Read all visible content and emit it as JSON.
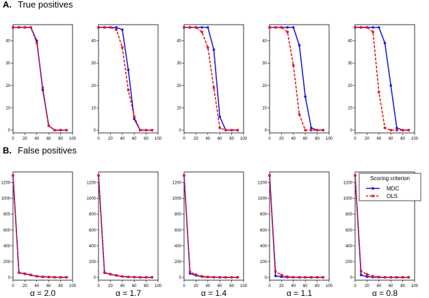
{
  "colors": {
    "mdc": "#1a1adb",
    "ols": "#e8141b",
    "frame": "#000000"
  },
  "sections": [
    {
      "letter": "A.",
      "title": "True positives"
    },
    {
      "letter": "B.",
      "title": "False positives"
    }
  ],
  "alpha_symbol": "α",
  "alpha_labels": [
    "α = 2.0",
    "α = 1.7",
    "α = 1.4",
    "α = 1.1",
    "α = 0.8"
  ],
  "legend": {
    "title": "Scoring criterion",
    "mdc": "MDC",
    "ols": "OLS"
  },
  "chart_data": [
    {
      "type": "line",
      "row": "true_positives",
      "alpha": 2.0,
      "x": [
        0,
        10,
        20,
        30,
        40,
        50,
        60,
        70,
        80,
        90
      ],
      "xlim": [
        0,
        100
      ],
      "xticks": [
        0,
        20,
        40,
        60,
        80,
        100
      ],
      "ylim": [
        0,
        46
      ],
      "yticks": [
        0,
        10,
        20,
        30,
        40
      ],
      "series": [
        {
          "name": "MDC",
          "values": [
            46,
            46,
            46,
            46,
            40,
            18,
            2,
            0,
            0,
            0
          ]
        },
        {
          "name": "OLS",
          "values": [
            46,
            46,
            46,
            46,
            39,
            19,
            2,
            0,
            0,
            0
          ]
        }
      ]
    },
    {
      "type": "line",
      "row": "true_positives",
      "alpha": 1.7,
      "x": [
        0,
        10,
        20,
        30,
        40,
        50,
        60,
        70,
        80,
        90
      ],
      "xlim": [
        0,
        100
      ],
      "xticks": [
        0,
        20,
        40,
        60,
        80,
        100
      ],
      "ylim": [
        0,
        46
      ],
      "yticks": [
        0,
        10,
        20,
        30,
        40
      ],
      "series": [
        {
          "name": "MDC",
          "values": [
            46,
            46,
            46,
            46,
            45,
            27,
            5,
            0,
            0,
            0
          ]
        },
        {
          "name": "OLS",
          "values": [
            46,
            46,
            46,
            45,
            37,
            18,
            6,
            0,
            0,
            0
          ]
        }
      ]
    },
    {
      "type": "line",
      "row": "true_positives",
      "alpha": 1.4,
      "x": [
        0,
        10,
        20,
        30,
        40,
        50,
        60,
        70,
        80,
        90
      ],
      "xlim": [
        0,
        100
      ],
      "xticks": [
        0,
        20,
        40,
        60,
        80,
        100
      ],
      "ylim": [
        0,
        46
      ],
      "yticks": [
        0,
        10,
        20,
        30,
        40
      ],
      "series": [
        {
          "name": "MDC",
          "values": [
            46,
            46,
            46,
            46,
            46,
            36,
            6,
            0,
            0,
            0
          ]
        },
        {
          "name": "OLS",
          "values": [
            46,
            46,
            46,
            44,
            37,
            19,
            1,
            0,
            0,
            0
          ]
        }
      ]
    },
    {
      "type": "line",
      "row": "true_positives",
      "alpha": 1.1,
      "x": [
        0,
        10,
        20,
        30,
        40,
        50,
        60,
        70,
        80,
        90
      ],
      "xlim": [
        0,
        100
      ],
      "xticks": [
        0,
        20,
        40,
        60,
        80,
        100
      ],
      "ylim": [
        0,
        46
      ],
      "yticks": [
        0,
        10,
        20,
        30,
        40
      ],
      "series": [
        {
          "name": "MDC",
          "values": [
            46,
            46,
            46,
            46,
            46,
            38,
            15,
            1,
            0,
            0
          ]
        },
        {
          "name": "OLS",
          "values": [
            46,
            46,
            46,
            44,
            29,
            7,
            0,
            0,
            0,
            0
          ]
        }
      ]
    },
    {
      "type": "line",
      "row": "true_positives",
      "alpha": 0.8,
      "x": [
        0,
        10,
        20,
        30,
        40,
        50,
        60,
        70,
        80,
        90
      ],
      "xlim": [
        0,
        100
      ],
      "xticks": [
        0,
        20,
        40,
        60,
        80,
        100
      ],
      "ylim": [
        0,
        46
      ],
      "yticks": [
        0,
        10,
        20,
        30,
        40
      ],
      "series": [
        {
          "name": "MDC",
          "values": [
            46,
            46,
            46,
            46,
            46,
            39,
            20,
            1,
            0,
            0
          ]
        },
        {
          "name": "OLS",
          "values": [
            46,
            46,
            46,
            44,
            17,
            1,
            0,
            0,
            0,
            0
          ]
        }
      ]
    },
    {
      "type": "line",
      "row": "false_positives",
      "alpha": 2.0,
      "x": [
        0,
        10,
        20,
        30,
        40,
        50,
        60,
        70,
        80,
        90
      ],
      "xlim": [
        0,
        100
      ],
      "xticks": [
        0,
        20,
        40,
        60,
        80,
        100
      ],
      "ylim": [
        0,
        1300
      ],
      "yticks": [
        0,
        200,
        400,
        600,
        800,
        1000,
        1200
      ],
      "series": [
        {
          "name": "MDC",
          "values": [
            1290,
            60,
            45,
            30,
            15,
            8,
            5,
            3,
            2,
            2
          ]
        },
        {
          "name": "OLS",
          "values": [
            1290,
            62,
            48,
            32,
            16,
            8,
            5,
            3,
            2,
            2
          ]
        }
      ]
    },
    {
      "type": "line",
      "row": "false_positives",
      "alpha": 1.7,
      "x": [
        0,
        10,
        20,
        30,
        40,
        50,
        60,
        70,
        80,
        90
      ],
      "xlim": [
        0,
        100
      ],
      "xticks": [
        0,
        20,
        40,
        60,
        80,
        100
      ],
      "ylim": [
        0,
        1300
      ],
      "yticks": [
        0,
        200,
        400,
        600,
        800,
        1000,
        1200
      ],
      "series": [
        {
          "name": "MDC",
          "values": [
            1290,
            60,
            40,
            25,
            12,
            6,
            4,
            2,
            2,
            2
          ]
        },
        {
          "name": "OLS",
          "values": [
            1290,
            62,
            42,
            27,
            13,
            6,
            4,
            2,
            2,
            2
          ]
        }
      ]
    },
    {
      "type": "line",
      "row": "false_positives",
      "alpha": 1.4,
      "x": [
        0,
        10,
        20,
        30,
        40,
        50,
        60,
        70,
        80,
        90
      ],
      "xlim": [
        0,
        100
      ],
      "xticks": [
        0,
        20,
        40,
        60,
        80,
        100
      ],
      "ylim": [
        0,
        1300
      ],
      "yticks": [
        0,
        200,
        400,
        600,
        800,
        1000,
        1200
      ],
      "series": [
        {
          "name": "MDC",
          "values": [
            1290,
            50,
            25,
            10,
            5,
            3,
            2,
            2,
            2,
            2
          ]
        },
        {
          "name": "OLS",
          "values": [
            1290,
            70,
            35,
            15,
            6,
            3,
            2,
            2,
            2,
            2
          ]
        }
      ]
    },
    {
      "type": "line",
      "row": "false_positives",
      "alpha": 1.1,
      "x": [
        0,
        10,
        20,
        30,
        40,
        50,
        60,
        70,
        80,
        90
      ],
      "xlim": [
        0,
        100
      ],
      "xticks": [
        0,
        20,
        40,
        60,
        80,
        100
      ],
      "ylim": [
        0,
        1300
      ],
      "yticks": [
        0,
        200,
        400,
        600,
        800,
        1000,
        1200
      ],
      "series": [
        {
          "name": "MDC",
          "values": [
            1290,
            20,
            8,
            3,
            2,
            2,
            2,
            2,
            2,
            2
          ]
        },
        {
          "name": "OLS",
          "values": [
            1290,
            75,
            30,
            10,
            4,
            2,
            2,
            2,
            2,
            2
          ]
        }
      ]
    },
    {
      "type": "line",
      "row": "false_positives",
      "alpha": 0.8,
      "x": [
        0,
        10,
        20,
        30,
        40,
        50,
        60,
        70,
        80,
        90
      ],
      "xlim": [
        0,
        100
      ],
      "xticks": [
        0,
        20,
        40,
        60,
        80,
        100
      ],
      "ylim": [
        0,
        1300
      ],
      "yticks": [
        0,
        200,
        400,
        600,
        800,
        1000,
        1200
      ],
      "series": [
        {
          "name": "MDC",
          "values": [
            1290,
            30,
            10,
            4,
            2,
            2,
            2,
            2,
            2,
            2
          ]
        },
        {
          "name": "OLS",
          "values": [
            1290,
            80,
            40,
            15,
            5,
            3,
            2,
            2,
            2,
            2
          ]
        }
      ]
    }
  ]
}
